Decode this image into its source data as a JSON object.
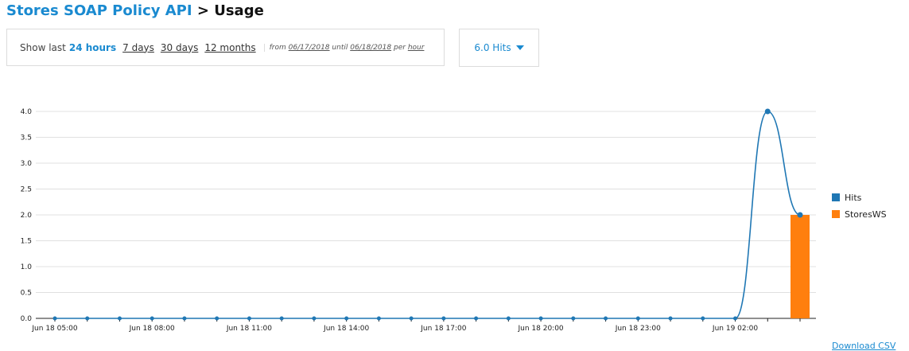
{
  "breadcrumb": {
    "api_name": "Stores SOAP Policy API",
    "separator": ">",
    "current": "Usage"
  },
  "period": {
    "show_last_label": "Show last",
    "options": [
      "24 hours",
      "7 days",
      "30 days",
      "12 months"
    ],
    "active": "24 hours",
    "from_label": "from",
    "from_date": "06/17/2018",
    "until_label": "until",
    "until_date": "06/18/2018",
    "per_label": "per",
    "per_value": "hour"
  },
  "hits_dropdown": {
    "label": "6.0 Hits",
    "icon": "caret-down-icon"
  },
  "download_label": "Download CSV",
  "colors": {
    "accent": "#1a8ad0",
    "hits": "#1f77b4",
    "storesws": "#ff7f0e",
    "grid": "#e0e0e0"
  },
  "chart_data": {
    "type": "line",
    "x_tick_labels": [
      "Jun 18 05:00",
      "Jun 18 08:00",
      "Jun 18 11:00",
      "Jun 18 14:00",
      "Jun 18 17:00",
      "Jun 18 20:00",
      "Jun 18 23:00",
      "Jun 19 02:00"
    ],
    "x": [
      "Jun 18 05:00",
      "Jun 18 06:00",
      "Jun 18 07:00",
      "Jun 18 08:00",
      "Jun 18 09:00",
      "Jun 18 10:00",
      "Jun 18 11:00",
      "Jun 18 12:00",
      "Jun 18 13:00",
      "Jun 18 14:00",
      "Jun 18 15:00",
      "Jun 18 16:00",
      "Jun 18 17:00",
      "Jun 18 18:00",
      "Jun 18 19:00",
      "Jun 18 20:00",
      "Jun 18 21:00",
      "Jun 18 22:00",
      "Jun 18 23:00",
      "Jun 19 00:00",
      "Jun 19 01:00",
      "Jun 19 02:00",
      "Jun 19 03:00",
      "Jun 19 04:00"
    ],
    "series": [
      {
        "name": "Hits",
        "type": "line",
        "color": "#1f77b4",
        "values": [
          0,
          0,
          0,
          0,
          0,
          0,
          0,
          0,
          0,
          0,
          0,
          0,
          0,
          0,
          0,
          0,
          0,
          0,
          0,
          0,
          0,
          0,
          4,
          2
        ]
      },
      {
        "name": "StoresWS",
        "type": "bar",
        "color": "#ff7f0e",
        "values": [
          0,
          0,
          0,
          0,
          0,
          0,
          0,
          0,
          0,
          0,
          0,
          0,
          0,
          0,
          0,
          0,
          0,
          0,
          0,
          0,
          0,
          0,
          0,
          2
        ]
      }
    ],
    "y_ticks": [
      "0.0",
      "0.5",
      "1.0",
      "1.5",
      "2.0",
      "2.5",
      "3.0",
      "3.5",
      "4.0"
    ],
    "ylim": [
      0,
      4
    ],
    "grid": true,
    "legend_position": "right"
  }
}
